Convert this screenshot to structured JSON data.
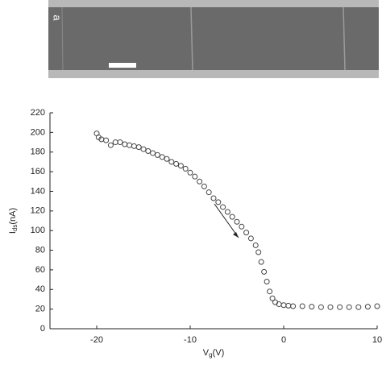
{
  "panel_label": "a",
  "chart_data": {
    "type": "scatter",
    "x_label": {
      "main": "V",
      "sub": "g",
      "unit": "(V)"
    },
    "y_label": {
      "main": "I",
      "sub": "ds",
      "unit": "(nA)"
    },
    "xlim": [
      -25,
      10
    ],
    "xticks": [
      -20,
      -10,
      0,
      10
    ],
    "ylim": [
      0,
      220
    ],
    "yticks": [
      0,
      20,
      40,
      60,
      80,
      100,
      120,
      140,
      160,
      180,
      200,
      220
    ],
    "color": "#444444",
    "x": [
      -20,
      -19.8,
      -19.5,
      -19,
      -18.5,
      -18,
      -17.5,
      -17,
      -16.5,
      -16,
      -15.5,
      -15,
      -14.5,
      -14,
      -13.5,
      -13,
      -12.5,
      -12,
      -11.5,
      -11,
      -10.5,
      -10,
      -9.5,
      -9,
      -8.5,
      -8,
      -7.5,
      -7,
      -6.5,
      -6,
      -5.5,
      -5,
      -4.5,
      -4,
      -3.5,
      -3,
      -2.7,
      -2.4,
      -2.1,
      -1.8,
      -1.5,
      -1.2,
      -0.9,
      -0.5,
      0,
      0.5,
      1,
      2,
      3,
      4,
      5,
      6,
      7,
      8,
      9,
      10
    ],
    "values": [
      199,
      195,
      193,
      192,
      187,
      190,
      190,
      188,
      187,
      186,
      185,
      183,
      181,
      179,
      177,
      175,
      173,
      170,
      168,
      166,
      163,
      159,
      155,
      150,
      145,
      139,
      133,
      129,
      124,
      119,
      114,
      109,
      104,
      98,
      92,
      85,
      78,
      68,
      58,
      48,
      38,
      31,
      27,
      25,
      24,
      23.5,
      23,
      23,
      22.5,
      22,
      22,
      22,
      22,
      22,
      22.5,
      23
    ]
  }
}
